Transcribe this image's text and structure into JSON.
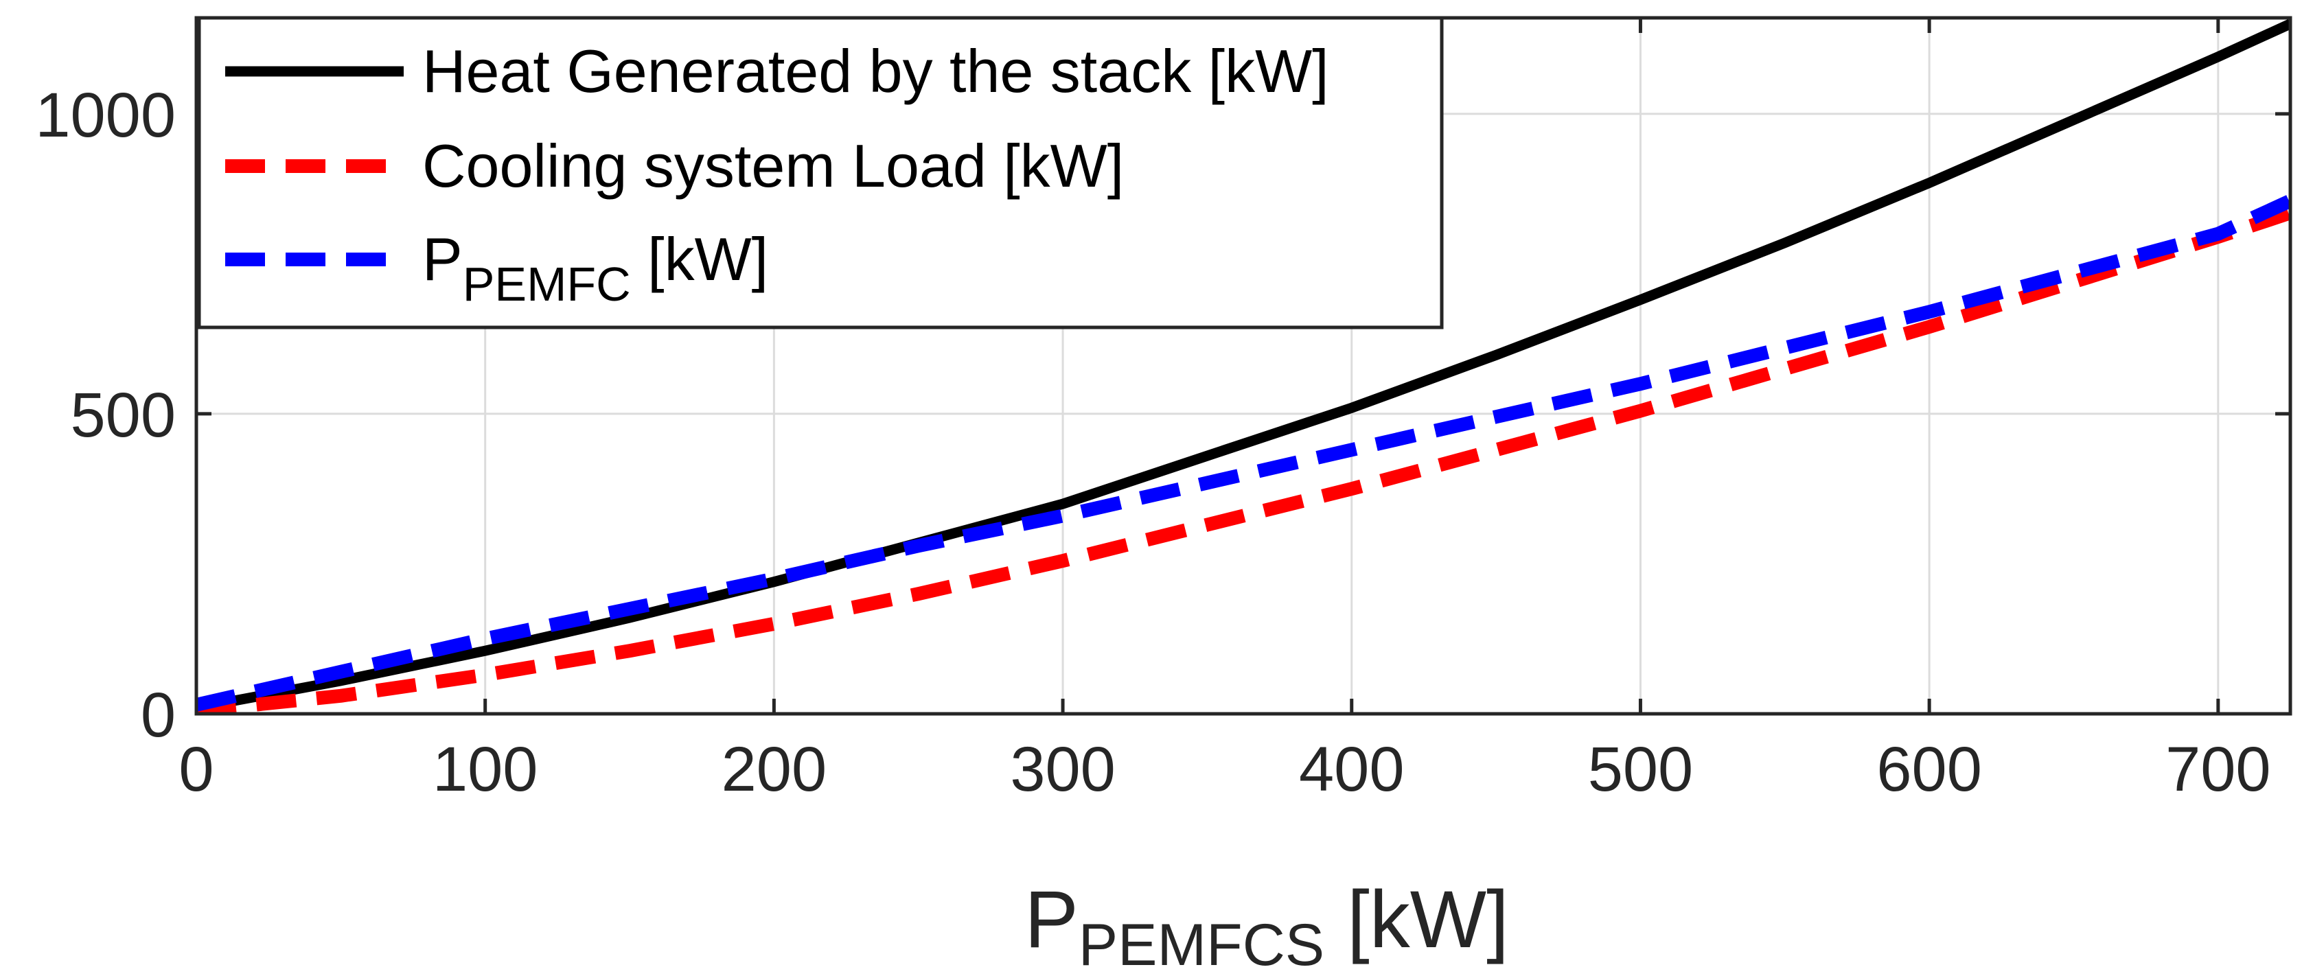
{
  "chart_data": {
    "type": "line",
    "title": "",
    "xlabel": {
      "main": "P",
      "sub": "PEMFCS",
      "unit": " [kW]"
    },
    "ylabel": "",
    "xlim": [
      0,
      725
    ],
    "ylim": [
      0,
      1160
    ],
    "xticks": [
      0,
      100,
      200,
      300,
      400,
      500,
      600,
      700
    ],
    "xtick_labels": [
      "0",
      "100",
      "200",
      "300",
      "400",
      "500",
      "600",
      "700"
    ],
    "yticks": [
      0,
      500,
      1000
    ],
    "ytick_labels": [
      "0",
      "500",
      "1000"
    ],
    "grid": true,
    "legend_position": "top-left",
    "series": [
      {
        "name": "Heat Generated by the stack [kW]",
        "legend_label": {
          "main": "Heat Generated by the stack [kW]",
          "sub": "",
          "unit": ""
        },
        "color": "#000000",
        "dashed": false,
        "x": [
          0,
          50,
          100,
          150,
          200,
          250,
          300,
          350,
          400,
          450,
          500,
          550,
          600,
          650,
          700,
          725
        ],
        "y": [
          10,
          55,
          105,
          160,
          220,
          285,
          350,
          430,
          510,
          598,
          690,
          785,
          885,
          990,
          1095,
          1150
        ]
      },
      {
        "name": "Cooling system Load [kW]",
        "legend_label": {
          "main": "Cooling system Load [kW]",
          "sub": "",
          "unit": ""
        },
        "color": "#ff0000",
        "dashed": true,
        "x": [
          0,
          50,
          100,
          150,
          200,
          250,
          300,
          350,
          400,
          450,
          500,
          550,
          600,
          650,
          700,
          725
        ],
        "y": [
          5,
          30,
          65,
          105,
          150,
          200,
          255,
          315,
          375,
          440,
          505,
          575,
          645,
          720,
          795,
          835
        ]
      },
      {
        "name": "P PEMFC [kW]",
        "legend_label": {
          "main": "P",
          "sub": "PEMFC",
          "unit": " [kW]"
        },
        "color": "#0000ff",
        "dashed": true,
        "x": [
          0,
          50,
          100,
          150,
          200,
          250,
          300,
          350,
          400,
          450,
          500,
          550,
          600,
          650,
          700,
          725
        ],
        "y": [
          15,
          70,
          125,
          175,
          225,
          280,
          330,
          385,
          440,
          495,
          550,
          610,
          670,
          735,
          800,
          855
        ]
      }
    ]
  }
}
